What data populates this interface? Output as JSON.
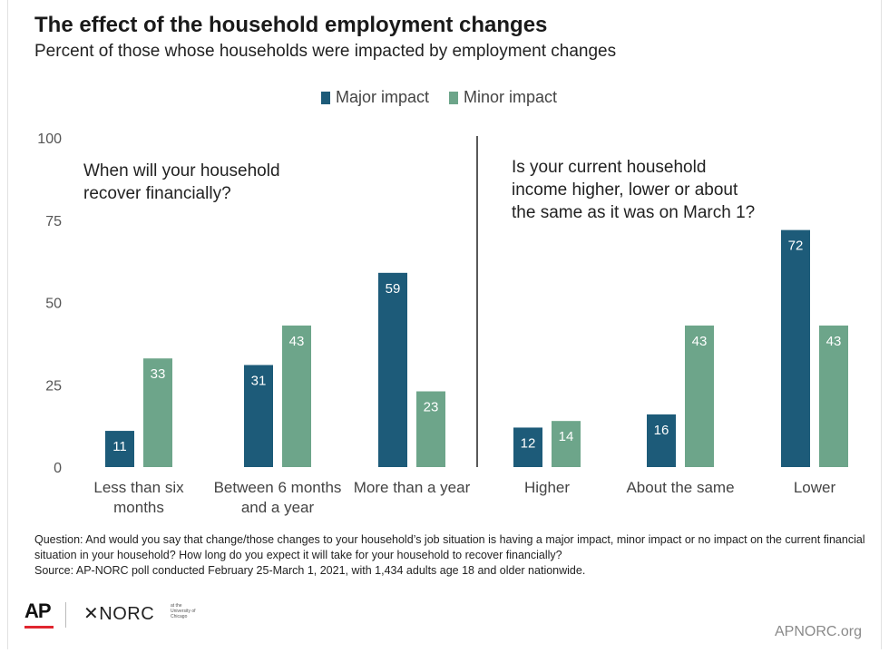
{
  "header": {
    "title": "The effect of the household employment changes",
    "subtitle": "Percent of those whose households were impacted by employment changes"
  },
  "legend": {
    "major_label": "Major impact",
    "minor_label": "Minor impact"
  },
  "colors": {
    "major": "#1d5b79",
    "minor": "#6da58a"
  },
  "chart_data": {
    "type": "bar",
    "ylim": [
      0,
      100
    ],
    "yticks": [
      0,
      25,
      50,
      75,
      100
    ],
    "grid": false,
    "legend_position": "top-center",
    "panels": [
      {
        "annotation": [
          "When will your household",
          "recover financially?"
        ],
        "categories": [
          [
            "Less than six",
            "months"
          ],
          [
            "Between 6 months",
            "and a year"
          ],
          [
            "More than a year"
          ]
        ],
        "series": [
          {
            "name": "Major impact",
            "values": [
              11,
              31,
              59
            ]
          },
          {
            "name": "Minor impact",
            "values": [
              33,
              43,
              23
            ]
          }
        ]
      },
      {
        "annotation": [
          "Is your current household",
          "income higher, lower or about",
          "the same as it was on March 1?"
        ],
        "categories": [
          [
            "Higher"
          ],
          [
            "About the same"
          ],
          [
            "Lower"
          ]
        ],
        "series": [
          {
            "name": "Major impact",
            "values": [
              12,
              16,
              72
            ]
          },
          {
            "name": "Minor impact",
            "values": [
              14,
              43,
              43
            ]
          }
        ]
      }
    ]
  },
  "footer": {
    "note_1": "Question: And would you say that change/those changes to your household’s job situation is having a major impact, minor impact or no impact on the current financial situation in your household? How long do you expect it will take for your household to recover financially?",
    "note_2": "Source: AP-NORC poll conducted February 25-March 1, 2021, with 1,434 adults age 18 and older nationwide.",
    "logo_ap": "AP",
    "logo_norc": "✕NORC",
    "logo_norc_small": "at the University of Chicago",
    "site": "APNORC.org"
  }
}
